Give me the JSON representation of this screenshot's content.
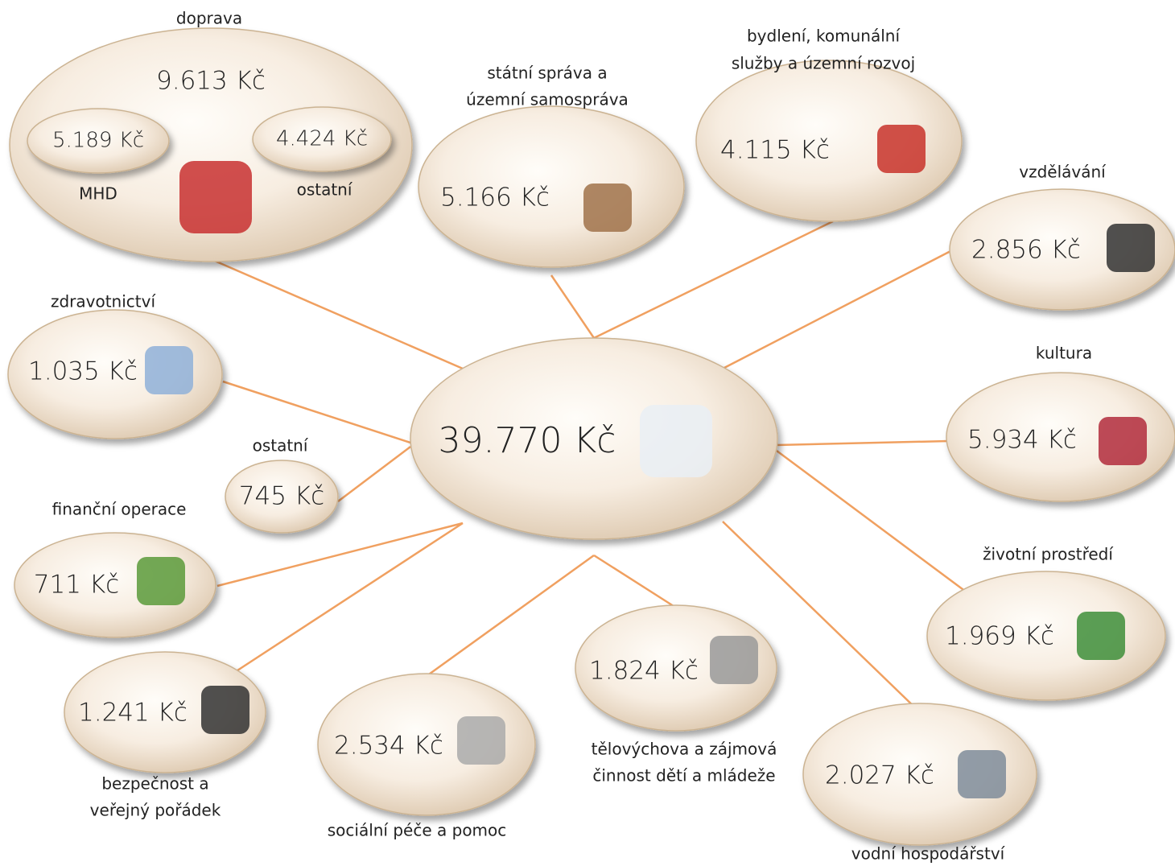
{
  "center": {
    "value": "39.770 Kč"
  },
  "nodes": [
    {
      "label": [
        "doprava"
      ],
      "value": "9.613 Kč",
      "children": [
        {
          "label": [
            "MHD"
          ],
          "value": "5.189 Kč"
        },
        {
          "label": [
            "ostatní"
          ],
          "value": "4.424 Kč"
        }
      ]
    },
    {
      "label": [
        "státní správa a",
        "územní samospráva"
      ],
      "value": "5.166 Kč"
    },
    {
      "label": [
        "bydlení, komunální",
        "služby a územní rozvoj"
      ],
      "value": "4.115 Kč"
    },
    {
      "label": [
        "vzdělávání"
      ],
      "value": "2.856 Kč"
    },
    {
      "label": [
        "kultura"
      ],
      "value": "5.934 Kč"
    },
    {
      "label": [
        "životní prostředí"
      ],
      "value": "1.969 Kč"
    },
    {
      "label": [
        "vodní hospodářství"
      ],
      "value": "2.027 Kč"
    },
    {
      "label": [
        "tělovýchova a zájmová",
        "činnost dětí a mládeže"
      ],
      "value": "1.824 Kč"
    },
    {
      "label": [
        "sociální péče a pomoc"
      ],
      "value": "2.534 Kč"
    },
    {
      "label": [
        "bezpečnost a",
        "veřejný pořádek"
      ],
      "value": "1.241 Kč"
    },
    {
      "label": [
        "finanční operace"
      ],
      "value": "711 Kč"
    },
    {
      "label": [
        "ostatní"
      ],
      "value": "745 Kč"
    },
    {
      "label": [
        "zdravotnictví"
      ],
      "value": "1.035 Kč"
    }
  ]
}
